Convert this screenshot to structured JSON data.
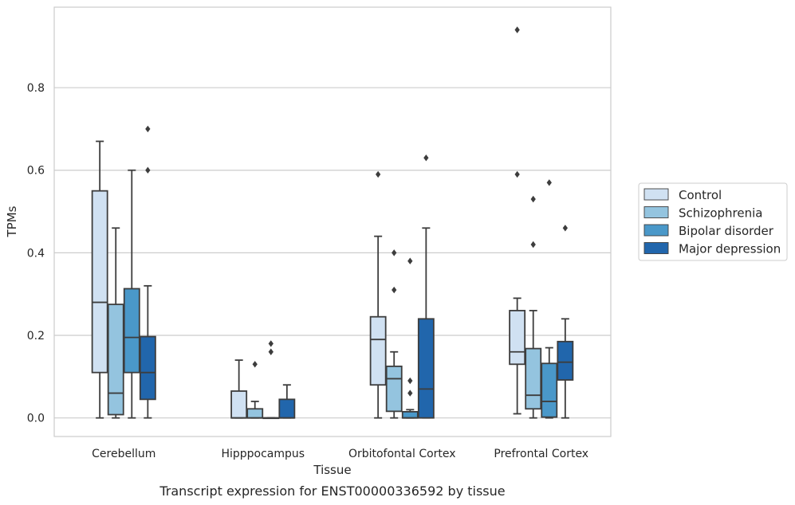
{
  "chart_data": {
    "type": "box",
    "title": "",
    "caption": "Transcript expression for ENST00000336592 by tissue",
    "xlabel": "Tissue",
    "ylabel": "TPMs",
    "ylim": [
      -0.045,
      0.995
    ],
    "yticks": [
      "0.0",
      "0.2",
      "0.4",
      "0.6",
      "0.8"
    ],
    "ytick_values": [
      0,
      0.2,
      0.4,
      0.6,
      0.8
    ],
    "grid": "horizontal",
    "legend_position": "right",
    "categories": [
      "Cerebellum",
      "Hipppocampus",
      "Orbitofontal Cortex",
      "Prefrontal Cortex"
    ],
    "series": [
      {
        "name": "Control",
        "color": "#d0e1f2",
        "boxes": [
          {
            "whisker_low": 0.0,
            "q1": 0.11,
            "median": 0.28,
            "q3": 0.55,
            "whisker_high": 0.67,
            "outliers": []
          },
          {
            "whisker_low": 0.0,
            "q1": 0.0,
            "median": 0.0,
            "q3": 0.065,
            "whisker_high": 0.14,
            "outliers": []
          },
          {
            "whisker_low": 0.0,
            "q1": 0.08,
            "median": 0.19,
            "q3": 0.245,
            "whisker_high": 0.44,
            "outliers": [
              0.59
            ]
          },
          {
            "whisker_low": 0.01,
            "q1": 0.13,
            "median": 0.16,
            "q3": 0.26,
            "whisker_high": 0.29,
            "outliers": [
              0.59,
              0.94
            ]
          }
        ]
      },
      {
        "name": "Schizophrenia",
        "color": "#94c4df",
        "boxes": [
          {
            "whisker_low": 0.0,
            "q1": 0.008,
            "median": 0.06,
            "q3": 0.275,
            "whisker_high": 0.46,
            "outliers": []
          },
          {
            "whisker_low": 0.0,
            "q1": 0.0,
            "median": 0.0,
            "q3": 0.022,
            "whisker_high": 0.04,
            "outliers": [
              0.13
            ]
          },
          {
            "whisker_low": 0.0,
            "q1": 0.016,
            "median": 0.095,
            "q3": 0.125,
            "whisker_high": 0.16,
            "outliers": [
              0.31,
              0.4
            ]
          },
          {
            "whisker_low": 0.0,
            "q1": 0.022,
            "median": 0.055,
            "q3": 0.168,
            "whisker_high": 0.26,
            "outliers": [
              0.42,
              0.53
            ]
          }
        ]
      },
      {
        "name": "Bipolar disorder",
        "color": "#4a98c9",
        "boxes": [
          {
            "whisker_low": 0.0,
            "q1": 0.11,
            "median": 0.195,
            "q3": 0.313,
            "whisker_high": 0.6,
            "outliers": []
          },
          {
            "whisker_low": 0.0,
            "q1": 0.0,
            "median": 0.0,
            "q3": 0.0,
            "whisker_high": 0.0,
            "outliers": [
              0.16,
              0.18
            ]
          },
          {
            "whisker_low": 0.0,
            "q1": 0.0,
            "median": 0.0,
            "q3": 0.015,
            "whisker_high": 0.02,
            "outliers": [
              0.06,
              0.09,
              0.38
            ]
          },
          {
            "whisker_low": 0.0,
            "q1": 0.002,
            "median": 0.04,
            "q3": 0.132,
            "whisker_high": 0.17,
            "outliers": [
              0.57
            ]
          }
        ]
      },
      {
        "name": "Major depression",
        "color": "#2166ac",
        "boxes": [
          {
            "whisker_low": 0.0,
            "q1": 0.045,
            "median": 0.11,
            "q3": 0.197,
            "whisker_high": 0.32,
            "outliers": [
              0.6,
              0.7
            ]
          },
          {
            "whisker_low": 0.0,
            "q1": 0.0,
            "median": 0.0,
            "q3": 0.045,
            "whisker_high": 0.08,
            "outliers": []
          },
          {
            "whisker_low": 0.0,
            "q1": 0.0,
            "median": 0.07,
            "q3": 0.24,
            "whisker_high": 0.46,
            "outliers": [
              0.63
            ]
          },
          {
            "whisker_low": 0.0,
            "q1": 0.092,
            "median": 0.135,
            "q3": 0.185,
            "whisker_high": 0.24,
            "outliers": [
              0.46
            ]
          }
        ]
      }
    ]
  }
}
